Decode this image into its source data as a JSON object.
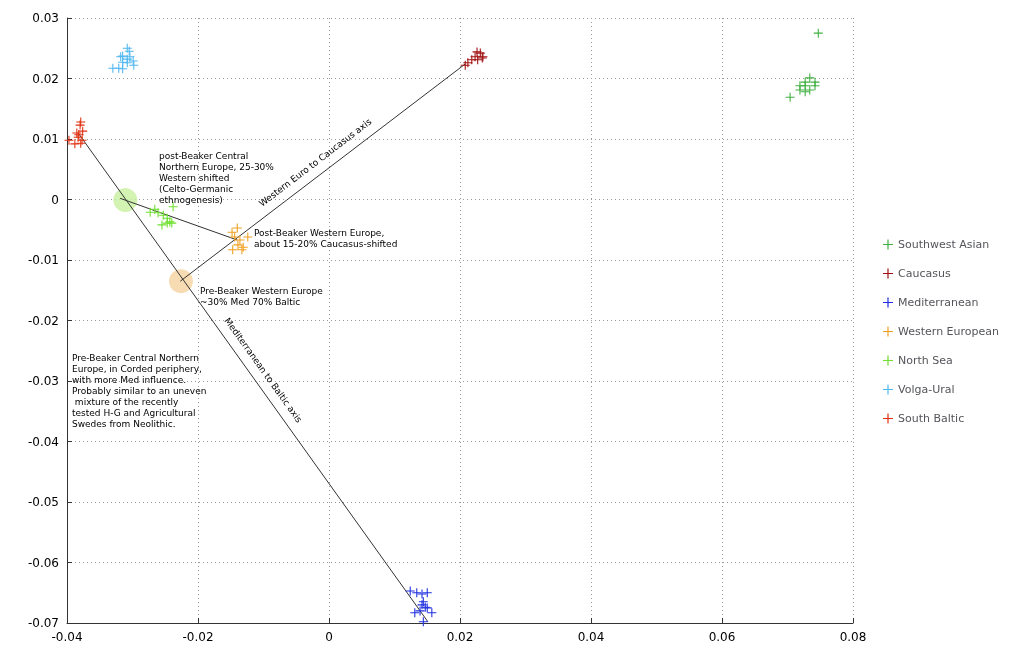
{
  "chart_data": {
    "type": "scatter",
    "xlim": [
      -0.04,
      0.08
    ],
    "xticks": [
      -0.04,
      -0.02,
      0,
      0.02,
      0.04,
      0.06,
      0.08
    ],
    "ylim": [
      -0.07,
      0.03
    ],
    "yticks": [
      -0.07,
      -0.06,
      -0.05,
      -0.04,
      -0.03,
      -0.02,
      -0.01,
      0,
      0.01,
      0.02,
      0.03
    ],
    "grid": true,
    "legend": "right",
    "marker": "cross",
    "series": [
      {
        "name": "Southwest Asian",
        "color": "#40b040",
        "x": [
          0.0747,
          0.0704,
          0.0719,
          0.0727,
          0.0734,
          0.0742,
          0.0727,
          0.0734,
          0.0719,
          0.0742,
          0.0727
        ],
        "values": [
          0.0275,
          0.0169,
          0.0181,
          0.0194,
          0.0201,
          0.0188,
          0.0178,
          0.0181,
          0.0188,
          0.0194,
          0.0188
        ]
      },
      {
        "name": "Caucasus",
        "color": "#a01010",
        "x": [
          0.0226,
          0.0231,
          0.0223,
          0.0234,
          0.0227,
          0.0235,
          0.0218,
          0.0212,
          0.0208
        ],
        "values": [
          0.0244,
          0.0242,
          0.0236,
          0.0234,
          0.0231,
          0.0236,
          0.0231,
          0.0226,
          0.0222
        ]
      },
      {
        "name": "Mediterranean",
        "color": "#2030e0",
        "x": [
          0.0124,
          0.0134,
          0.0142,
          0.015,
          0.0144,
          0.0142,
          0.0147,
          0.015,
          0.0131,
          0.0157,
          0.0144,
          0.0139
        ],
        "values": [
          -0.0647,
          -0.065,
          -0.0652,
          -0.065,
          -0.0665,
          -0.067,
          -0.0674,
          -0.0675,
          -0.0683,
          -0.0683,
          -0.0698,
          -0.068
        ]
      },
      {
        "name": "Western European",
        "color": "#f0a020",
        "x": [
          -0.014,
          -0.0148,
          -0.0144,
          -0.0136,
          -0.0124,
          -0.0139,
          -0.0131,
          -0.0147,
          -0.0133
        ],
        "values": [
          -0.0047,
          -0.0054,
          -0.0062,
          -0.0067,
          -0.0062,
          -0.0075,
          -0.0079,
          -0.0083,
          -0.0083
        ]
      },
      {
        "name": "North Sea",
        "color": "#70e030",
        "x": [
          -0.0273,
          -0.0266,
          -0.0261,
          -0.0253,
          -0.0238,
          -0.0247,
          -0.0243,
          -0.0255,
          -0.0247,
          -0.024
        ],
        "values": [
          -0.0021,
          -0.0016,
          -0.0022,
          -0.0026,
          -0.0012,
          -0.0031,
          -0.0037,
          -0.0042,
          -0.0039,
          -0.0039
        ]
      },
      {
        "name": "Volga-Ural",
        "color": "#50b8f0",
        "x": [
          -0.0305,
          -0.0315,
          -0.0318,
          -0.0304,
          -0.0308,
          -0.0299,
          -0.0315,
          -0.0308,
          -0.0298,
          -0.033,
          -0.0321,
          -0.0315,
          -0.0308
        ],
        "values": [
          0.0245,
          0.0237,
          0.0236,
          0.0236,
          0.0232,
          0.0229,
          0.0227,
          0.0226,
          0.0222,
          0.0217,
          0.0217,
          0.0216,
          0.025
        ]
      },
      {
        "name": "South Baltic",
        "color": "#e03010",
        "x": [
          -0.0379,
          -0.038,
          -0.0376,
          -0.0385,
          -0.0382,
          -0.0397,
          -0.0388,
          -0.0377,
          -0.0383,
          -0.0379
        ],
        "values": [
          0.0128,
          0.0123,
          0.0113,
          0.011,
          0.0107,
          0.0098,
          0.0092,
          0.0098,
          0.0103,
          0.0093
        ]
      },
      {
        "type": "scatter",
        "marker": "circle",
        "color": "#c8f0a0",
        "x": [
          -0.0311
        ],
        "values": [
          -0.0001
        ]
      },
      {
        "type": "scatter",
        "marker": "circle",
        "color": "#f5d3a0",
        "x": [
          -0.0226
        ],
        "values": [
          -0.0135
        ]
      },
      {
        "type": "line",
        "marker": "none",
        "name": "Mediterranean to Baltic axis",
        "color": "#333333",
        "x": [
          -0.0383,
          0.0151
        ],
        "values": [
          0.011,
          -0.0698
        ]
      },
      {
        "type": "line",
        "marker": "none",
        "name": "Western Euro to Caucasus axis",
        "color": "#333333",
        "x": [
          -0.0227,
          0.0208
        ],
        "values": [
          -0.0135,
          0.0224
        ]
      },
      {
        "type": "line",
        "marker": "none",
        "color": "#333333",
        "x": [
          -0.0319,
          -0.014
        ],
        "values": [
          0.0002,
          -0.0067
        ]
      }
    ],
    "annotations": [
      "Pre-Beaker Central Northern Europe, in Corded periphery, with more Med influence. Probably similar to an uneven mixture of the recently tested H-G and Agricultural Swedes from Neolithic.",
      "post-Beaker Central Northern Europe, 25-30% Western shifted (Celto-Germanic ethnogenesis)",
      "Post-Beaker Western Europe, about 15-20% Caucasus-shifted",
      "Pre-Beaker Western Europe ~30% Med 70% Baltic"
    ]
  }
}
